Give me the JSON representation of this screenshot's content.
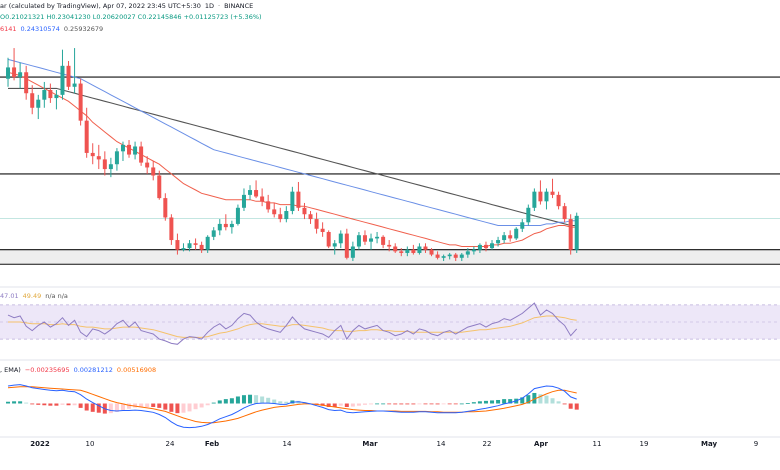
{
  "header": {
    "title_fragment": "ar (calculated by TradingView), Apr 07, 2022 23:45 UTC+5:30",
    "interval": "1D",
    "exchange": "BINANCE",
    "ohlc": "O0.21021321  H0.23041230  L0.20620027  C0.22145846  +0.01125723 (+5.36%)",
    "ma_row": [
      "6141",
      "0.24310574",
      "0.25932679"
    ],
    "rsi_label": "47.01",
    "rsi_ma": "49.49",
    "rsi_na": "n/a  n/a",
    "macd_label": ", EMA)",
    "macd_values": [
      "−0.00235695",
      "0.00281212",
      "0.00516908"
    ]
  },
  "x_axis": {
    "ticks": [
      "2022",
      "10",
      "24",
      "Feb",
      "14",
      "Mar",
      "14",
      "22",
      "Apr",
      "11",
      "19",
      "May",
      "9"
    ]
  },
  "colors": {
    "up": "#26a69a",
    "down": "#ef5350",
    "ma_red": "#f0604d",
    "ma_blue": "#6a8fe6",
    "ma_gray": "#555555",
    "rsi": "#8e7cc3",
    "rsi_ma": "#f5c26b",
    "rsi_band": "#ede7f8",
    "macd_line": "#2962ff",
    "signal_line": "#ff6d00"
  },
  "chart_data": {
    "type": "candlestick",
    "candles": [
      [
        0.301,
        0.314,
        0.296,
        0.308
      ],
      [
        0.308,
        0.32,
        0.3,
        0.302
      ],
      [
        0.302,
        0.311,
        0.295,
        0.305
      ],
      [
        0.305,
        0.309,
        0.288,
        0.292
      ],
      [
        0.292,
        0.297,
        0.279,
        0.283
      ],
      [
        0.283,
        0.291,
        0.276,
        0.288
      ],
      [
        0.288,
        0.299,
        0.283,
        0.294
      ],
      [
        0.294,
        0.298,
        0.286,
        0.289
      ],
      [
        0.289,
        0.294,
        0.282,
        0.291
      ],
      [
        0.291,
        0.319,
        0.288,
        0.309
      ],
      [
        0.309,
        0.312,
        0.294,
        0.296
      ],
      [
        0.296,
        0.32,
        0.292,
        0.298
      ],
      [
        0.298,
        0.301,
        0.272,
        0.275
      ],
      [
        0.275,
        0.283,
        0.252,
        0.255
      ],
      [
        0.255,
        0.261,
        0.248,
        0.253
      ],
      [
        0.253,
        0.26,
        0.245,
        0.251
      ],
      [
        0.251,
        0.256,
        0.241,
        0.245
      ],
      [
        0.245,
        0.252,
        0.24,
        0.248
      ],
      [
        0.248,
        0.258,
        0.244,
        0.256
      ],
      [
        0.256,
        0.262,
        0.25,
        0.26
      ],
      [
        0.26,
        0.263,
        0.252,
        0.254
      ],
      [
        0.254,
        0.262,
        0.251,
        0.259
      ],
      [
        0.259,
        0.262,
        0.247,
        0.249
      ],
      [
        0.249,
        0.253,
        0.242,
        0.246
      ],
      [
        0.246,
        0.25,
        0.238,
        0.241
      ],
      [
        0.241,
        0.244,
        0.226,
        0.227
      ],
      [
        0.227,
        0.23,
        0.213,
        0.215
      ],
      [
        0.215,
        0.217,
        0.198,
        0.201
      ],
      [
        0.201,
        0.205,
        0.192,
        0.195
      ],
      [
        0.195,
        0.199,
        0.194,
        0.196
      ],
      [
        0.196,
        0.201,
        0.194,
        0.199
      ],
      [
        0.199,
        0.202,
        0.195,
        0.198
      ],
      [
        0.198,
        0.2,
        0.193,
        0.195
      ],
      [
        0.195,
        0.204,
        0.193,
        0.203
      ],
      [
        0.203,
        0.209,
        0.201,
        0.207
      ],
      [
        0.207,
        0.214,
        0.204,
        0.211
      ],
      [
        0.211,
        0.217,
        0.207,
        0.209
      ],
      [
        0.209,
        0.213,
        0.205,
        0.211
      ],
      [
        0.211,
        0.223,
        0.21,
        0.221
      ],
      [
        0.221,
        0.233,
        0.219,
        0.229
      ],
      [
        0.229,
        0.235,
        0.226,
        0.232
      ],
      [
        0.232,
        0.238,
        0.227,
        0.228
      ],
      [
        0.228,
        0.233,
        0.222,
        0.225
      ],
      [
        0.225,
        0.229,
        0.218,
        0.22
      ],
      [
        0.22,
        0.224,
        0.215,
        0.217
      ],
      [
        0.217,
        0.221,
        0.212,
        0.214
      ],
      [
        0.214,
        0.222,
        0.212,
        0.219
      ],
      [
        0.219,
        0.234,
        0.217,
        0.231
      ],
      [
        0.231,
        0.237,
        0.219,
        0.221
      ],
      [
        0.221,
        0.224,
        0.214,
        0.217
      ],
      [
        0.217,
        0.219,
        0.211,
        0.214
      ],
      [
        0.214,
        0.218,
        0.205,
        0.208
      ],
      [
        0.208,
        0.212,
        0.203,
        0.206
      ],
      [
        0.206,
        0.207,
        0.196,
        0.197
      ],
      [
        0.197,
        0.201,
        0.192,
        0.199
      ],
      [
        0.199,
        0.207,
        0.196,
        0.205
      ],
      [
        0.205,
        0.208,
        0.189,
        0.19
      ],
      [
        0.19,
        0.2,
        0.188,
        0.197
      ],
      [
        0.197,
        0.206,
        0.195,
        0.204
      ],
      [
        0.204,
        0.207,
        0.198,
        0.2
      ],
      [
        0.2,
        0.205,
        0.195,
        0.202
      ],
      [
        0.202,
        0.206,
        0.199,
        0.203
      ],
      [
        0.203,
        0.204,
        0.196,
        0.198
      ],
      [
        0.198,
        0.201,
        0.194,
        0.197
      ],
      [
        0.197,
        0.199,
        0.193,
        0.194
      ],
      [
        0.194,
        0.196,
        0.191,
        0.193
      ],
      [
        0.193,
        0.197,
        0.191,
        0.195
      ],
      [
        0.195,
        0.198,
        0.192,
        0.193
      ],
      [
        0.193,
        0.199,
        0.192,
        0.197
      ],
      [
        0.197,
        0.199,
        0.193,
        0.195
      ],
      [
        0.195,
        0.196,
        0.191,
        0.192
      ],
      [
        0.192,
        0.194,
        0.189,
        0.19
      ],
      [
        0.19,
        0.192,
        0.188,
        0.191
      ],
      [
        0.191,
        0.193,
        0.189,
        0.192
      ],
      [
        0.192,
        0.193,
        0.188,
        0.19
      ],
      [
        0.19,
        0.193,
        0.188,
        0.192
      ],
      [
        0.192,
        0.196,
        0.19,
        0.194
      ],
      [
        0.194,
        0.197,
        0.192,
        0.195
      ],
      [
        0.195,
        0.199,
        0.193,
        0.198
      ],
      [
        0.198,
        0.2,
        0.194,
        0.196
      ],
      [
        0.196,
        0.201,
        0.195,
        0.199
      ],
      [
        0.199,
        0.203,
        0.197,
        0.201
      ],
      [
        0.201,
        0.206,
        0.199,
        0.204
      ],
      [
        0.204,
        0.207,
        0.2,
        0.202
      ],
      [
        0.202,
        0.209,
        0.201,
        0.208
      ],
      [
        0.208,
        0.214,
        0.206,
        0.212
      ],
      [
        0.212,
        0.223,
        0.21,
        0.221
      ],
      [
        0.221,
        0.233,
        0.219,
        0.231
      ],
      [
        0.231,
        0.238,
        0.223,
        0.225
      ],
      [
        0.225,
        0.233,
        0.22,
        0.231
      ],
      [
        0.231,
        0.239,
        0.227,
        0.229
      ],
      [
        0.229,
        0.231,
        0.22,
        0.222
      ],
      [
        0.222,
        0.224,
        0.212,
        0.214
      ],
      [
        0.214,
        0.217,
        0.192,
        0.195
      ],
      [
        0.195,
        0.218,
        0.193,
        0.216
      ]
    ],
    "levels": [
      0.302,
      0.242,
      0.195,
      0.186
    ],
    "ma_red": [
      0.305,
      0.304,
      0.303,
      0.301,
      0.299,
      0.297,
      0.295,
      0.293,
      0.291,
      0.289,
      0.287,
      0.284,
      0.281,
      0.278,
      0.274,
      0.271,
      0.268,
      0.265,
      0.262,
      0.26,
      0.258,
      0.256,
      0.254,
      0.252,
      0.25,
      0.248,
      0.245,
      0.242,
      0.239,
      0.236,
      0.234,
      0.232,
      0.23,
      0.229,
      0.228,
      0.227,
      0.226,
      0.226,
      0.226,
      0.226,
      0.226,
      0.225,
      0.225,
      0.224,
      0.224,
      0.223,
      0.223,
      0.223,
      0.222,
      0.222,
      0.221,
      0.22,
      0.219,
      0.218,
      0.217,
      0.216,
      0.215,
      0.214,
      0.213,
      0.212,
      0.211,
      0.21,
      0.209,
      0.208,
      0.207,
      0.206,
      0.205,
      0.204,
      0.203,
      0.202,
      0.201,
      0.2,
      0.199,
      0.198,
      0.198,
      0.197,
      0.197,
      0.197,
      0.197,
      0.197,
      0.198,
      0.198,
      0.199,
      0.199,
      0.2,
      0.201,
      0.203,
      0.205,
      0.206,
      0.208,
      0.209,
      0.21,
      0.21,
      0.209,
      0.209
    ],
    "ma_blue": [
      0.313,
      0.312,
      0.311,
      0.31,
      0.309,
      0.308,
      0.307,
      0.306,
      0.305,
      0.304,
      0.303,
      0.302,
      0.301,
      0.299,
      0.297,
      0.295,
      0.293,
      0.291,
      0.289,
      0.287,
      0.285,
      0.283,
      0.281,
      0.279,
      0.277,
      0.275,
      0.273,
      0.271,
      0.269,
      0.267,
      0.265,
      0.263,
      0.261,
      0.259,
      0.257,
      0.256,
      0.255,
      0.254,
      0.253,
      0.252,
      0.251,
      0.25,
      0.249,
      0.248,
      0.247,
      0.246,
      0.245,
      0.244,
      0.243,
      0.242,
      0.241,
      0.24,
      0.239,
      0.238,
      0.237,
      0.236,
      0.235,
      0.234,
      0.233,
      0.232,
      0.231,
      0.23,
      0.229,
      0.228,
      0.227,
      0.226,
      0.225,
      0.224,
      0.223,
      0.222,
      0.221,
      0.22,
      0.219,
      0.218,
      0.217,
      0.216,
      0.215,
      0.214,
      0.213,
      0.212,
      0.211,
      0.21,
      0.21,
      0.21,
      0.21,
      0.21,
      0.21,
      0.21,
      0.21,
      0.211,
      0.211,
      0.212,
      0.212,
      0.213,
      0.213
    ],
    "ma_gray": [
      0.295,
      0.295,
      0.295,
      0.295,
      0.295,
      0.295,
      0.295,
      0.295,
      0.295,
      0.294,
      0.293,
      0.292,
      0.291,
      0.29,
      0.289,
      0.288,
      0.287,
      0.286,
      0.285,
      0.284,
      0.283,
      0.282,
      0.281,
      0.28,
      0.279,
      0.278,
      0.277,
      0.276,
      0.275,
      0.274,
      0.273,
      0.272,
      0.271,
      0.27,
      0.269,
      0.268,
      0.267,
      0.266,
      0.265,
      0.264,
      0.263,
      0.262,
      0.261,
      0.26,
      0.259,
      0.258,
      0.257,
      0.256,
      0.255,
      0.254,
      0.253,
      0.252,
      0.251,
      0.25,
      0.249,
      0.248,
      0.247,
      0.246,
      0.245,
      0.244,
      0.243,
      0.242,
      0.241,
      0.24,
      0.239,
      0.238,
      0.237,
      0.236,
      0.235,
      0.234,
      0.233,
      0.232,
      0.231,
      0.23,
      0.229,
      0.228,
      0.227,
      0.226,
      0.225,
      0.224,
      0.223,
      0.222,
      0.221,
      0.22,
      0.219,
      0.218,
      0.217,
      0.216,
      0.215,
      0.214,
      0.213,
      0.212,
      0.211,
      0.21,
      0.21
    ],
    "rsi": [
      58,
      55,
      57,
      45,
      40,
      46,
      50,
      44,
      48,
      55,
      46,
      52,
      38,
      33,
      42,
      40,
      36,
      41,
      48,
      52,
      44,
      50,
      40,
      38,
      36,
      30,
      28,
      25,
      24,
      30,
      33,
      32,
      30,
      38,
      44,
      48,
      42,
      46,
      54,
      60,
      58,
      50,
      45,
      42,
      40,
      38,
      46,
      56,
      48,
      42,
      40,
      38,
      36,
      32,
      40,
      46,
      30,
      40,
      46,
      42,
      44,
      46,
      40,
      38,
      34,
      36,
      40,
      36,
      42,
      40,
      36,
      34,
      38,
      40,
      36,
      40,
      44,
      46,
      48,
      44,
      48,
      50,
      54,
      52,
      56,
      60,
      66,
      72,
      58,
      64,
      60,
      52,
      46,
      34,
      42
    ],
    "rsi_ma": [
      50,
      50,
      50,
      49,
      48,
      48,
      48,
      47,
      47,
      48,
      47,
      47,
      45,
      44,
      44,
      43,
      42,
      42,
      43,
      44,
      44,
      44,
      43,
      42,
      41,
      39,
      37,
      35,
      33,
      32,
      32,
      32,
      32,
      33,
      35,
      37,
      38,
      40,
      42,
      45,
      47,
      48,
      48,
      47,
      46,
      45,
      45,
      47,
      47,
      46,
      45,
      44,
      43,
      41,
      40,
      40,
      39,
      39,
      40,
      40,
      41,
      41,
      40,
      40,
      39,
      39,
      39,
      38,
      38,
      38,
      38,
      38,
      38,
      38,
      38,
      38,
      39,
      40,
      41,
      41,
      42,
      43,
      44,
      45,
      47,
      49,
      52,
      55,
      56,
      57,
      57,
      56,
      55,
      53,
      52
    ],
    "macd": [
      0.004,
      0.0042,
      0.0043,
      0.004,
      0.0036,
      0.0034,
      0.0032,
      0.003,
      0.0029,
      0.003,
      0.0028,
      0.0027,
      0.002,
      0.001,
      0.0002,
      -0.0005,
      -0.0012,
      -0.0016,
      -0.0017,
      -0.0016,
      -0.0016,
      -0.0015,
      -0.0016,
      -0.0018,
      -0.002,
      -0.0025,
      -0.0032,
      -0.0042,
      -0.005,
      -0.0054,
      -0.0055,
      -0.0054,
      -0.0052,
      -0.0048,
      -0.0042,
      -0.0035,
      -0.003,
      -0.0025,
      -0.0018,
      -0.001,
      -0.0004,
      0.0,
      0.0001,
      0.0001,
      0.0,
      -0.0002,
      -0.0002,
      0.0003,
      0.0004,
      0.0002,
      -0.0001,
      -0.0005,
      -0.0009,
      -0.0014,
      -0.0016,
      -0.0015,
      -0.002,
      -0.0021,
      -0.002,
      -0.0019,
      -0.0018,
      -0.0017,
      -0.0017,
      -0.0018,
      -0.0019,
      -0.002,
      -0.002,
      -0.002,
      -0.0019,
      -0.0019,
      -0.002,
      -0.0021,
      -0.0021,
      -0.0021,
      -0.0021,
      -0.002,
      -0.0018,
      -0.0016,
      -0.0013,
      -0.0011,
      -0.0008,
      -0.0005,
      -0.0001,
      0.0002,
      0.0006,
      0.0012,
      0.0022,
      0.0034,
      0.0037,
      0.004,
      0.0039,
      0.0035,
      0.0028,
      0.0015,
      0.001
    ],
    "signal": [
      0.0036,
      0.0037,
      0.0038,
      0.0038,
      0.0038,
      0.0037,
      0.0036,
      0.0035,
      0.0034,
      0.0033,
      0.0032,
      0.0031,
      0.003,
      0.0026,
      0.0021,
      0.0016,
      0.0011,
      0.0006,
      0.0002,
      -0.0001,
      -0.0004,
      -0.0006,
      -0.0008,
      -0.001,
      -0.0012,
      -0.0015,
      -0.0018,
      -0.0023,
      -0.0028,
      -0.0033,
      -0.0037,
      -0.0041,
      -0.0043,
      -0.0044,
      -0.0044,
      -0.0042,
      -0.004,
      -0.0037,
      -0.0034,
      -0.0029,
      -0.0024,
      -0.0019,
      -0.0015,
      -0.0012,
      -0.0009,
      -0.0007,
      -0.0006,
      -0.0004,
      -0.0002,
      -0.0001,
      -0.0001,
      -0.0002,
      -0.0004,
      -0.0006,
      -0.0008,
      -0.001,
      -0.0012,
      -0.0014,
      -0.0015,
      -0.0016,
      -0.0016,
      -0.0017,
      -0.0017,
      -0.0017,
      -0.0017,
      -0.0018,
      -0.0018,
      -0.0018,
      -0.0018,
      -0.0018,
      -0.0019,
      -0.0019,
      -0.002,
      -0.002,
      -0.002,
      -0.002,
      -0.0019,
      -0.0019,
      -0.0018,
      -0.0017,
      -0.0015,
      -0.0013,
      -0.0011,
      -0.0008,
      -0.0005,
      -0.0002,
      0.0003,
      0.001,
      0.0016,
      0.0022,
      0.0027,
      0.003,
      0.003,
      0.0027,
      0.0024
    ]
  }
}
